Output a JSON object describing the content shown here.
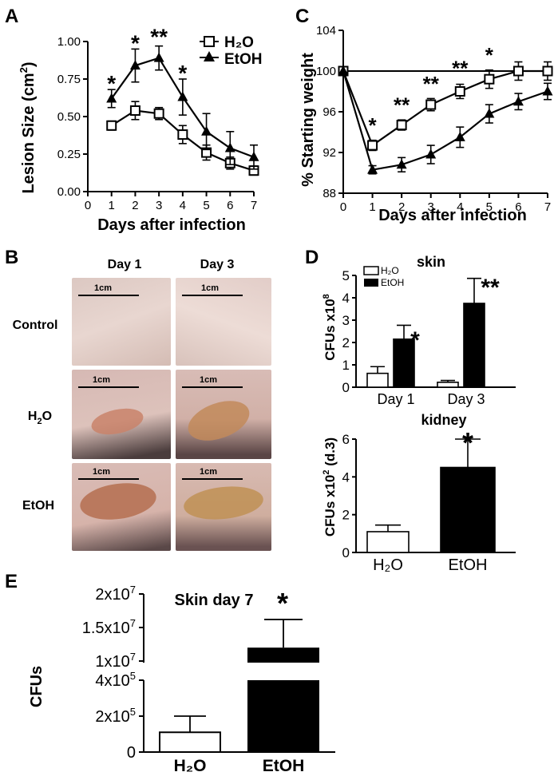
{
  "panels": {
    "A": {
      "letter": "A",
      "ylabel": "Lesion Size (cm",
      "ylabel_sup": "2",
      "ylabel_end": ")",
      "xlabel": "Days after infection",
      "yticks": [
        "0.00",
        "0.25",
        "0.50",
        "0.75",
        "1.00"
      ],
      "xticks": [
        "0",
        "1",
        "2",
        "3",
        "4",
        "5",
        "6",
        "7"
      ],
      "legend": [
        "H₂O",
        "EtOH"
      ],
      "stars": [
        "*",
        "*",
        "**",
        "*"
      ]
    },
    "B": {
      "letter": "B",
      "col_labels": [
        "Day 1",
        "Day 3"
      ],
      "row_labels": [
        "Control",
        "H",
        "2",
        "O",
        "EtOH"
      ],
      "scale_label": "1cm"
    },
    "C": {
      "letter": "C",
      "ylabel": "% Starting weight",
      "xlabel": "Days after infection",
      "yticks": [
        "88",
        "92",
        "96",
        "100",
        "104"
      ],
      "xticks": [
        "0",
        "1",
        "2",
        "3",
        "4",
        "5",
        "6",
        "7"
      ],
      "stars": [
        "*",
        "**",
        "**",
        "**",
        "*"
      ]
    },
    "D": {
      "letter": "D",
      "skin_title": "skin",
      "skin_ylabel": "CFUs x10",
      "skin_ylabel_sup": "8",
      "skin_yticks": [
        "0",
        "1",
        "2",
        "3",
        "4",
        "5"
      ],
      "skin_xticks": [
        "Day 1",
        "Day 3"
      ],
      "legend": [
        "H₂O",
        "EtOH"
      ],
      "skin_stars": [
        "*",
        "**"
      ],
      "kidney_title": "kidney",
      "kidney_ylabel": "CFUs x10",
      "kidney_ylabel_sup": "2",
      "kidney_ylabel_end": " (d.3)",
      "kidney_yticks": [
        "0",
        "2",
        "4",
        "6"
      ],
      "kidney_xticks": [
        "H₂O",
        "EtOH"
      ],
      "kidney_star": "*"
    },
    "E": {
      "letter": "E",
      "title": "Skin day 7",
      "ylabel": "CFUs",
      "yticks_low": [
        "0",
        "2x10",
        "4x10"
      ],
      "yticks_low_sup": [
        "",
        "5",
        "5"
      ],
      "yticks_high": [
        "1x10",
        "1.5x10",
        "2x10"
      ],
      "yticks_high_sup": [
        "7",
        "7",
        "7"
      ],
      "xticks": [
        "H₂O",
        "EtOH"
      ],
      "star": "*"
    }
  },
  "chart_data": [
    {
      "type": "line",
      "panel": "A",
      "x": [
        1,
        2,
        3,
        4,
        5,
        6,
        7
      ],
      "xlim": [
        0,
        7
      ],
      "ylim": [
        0,
        1.0
      ],
      "series": [
        {
          "name": "H₂O",
          "values": [
            0.44,
            0.54,
            0.52,
            0.38,
            0.26,
            0.19,
            0.14
          ],
          "errors": [
            0.03,
            0.06,
            0.04,
            0.06,
            0.05,
            0.04,
            0.03
          ]
        },
        {
          "name": "EtOH",
          "values": [
            0.62,
            0.84,
            0.89,
            0.63,
            0.4,
            0.29,
            0.23
          ],
          "errors": [
            0.06,
            0.11,
            0.08,
            0.12,
            0.12,
            0.11,
            0.08
          ]
        }
      ]
    },
    {
      "type": "line",
      "panel": "C",
      "x": [
        0,
        1,
        2,
        3,
        4,
        5,
        6,
        7
      ],
      "xlim": [
        0,
        7
      ],
      "ylim": [
        88,
        104
      ],
      "series": [
        {
          "name": "H₂O",
          "values": [
            100,
            92.7,
            94.7,
            96.7,
            98.0,
            99.2,
            100.0,
            100.0
          ],
          "errors": [
            0,
            0.5,
            0.5,
            0.6,
            0.7,
            0.9,
            0.9,
            0.9
          ]
        },
        {
          "name": "EtOH",
          "values": [
            100,
            90.3,
            90.8,
            91.8,
            93.5,
            95.8,
            97.0,
            98.0
          ],
          "errors": [
            0,
            0.4,
            0.7,
            0.9,
            1.0,
            0.9,
            0.8,
            0.8
          ]
        }
      ]
    },
    {
      "type": "bar",
      "panel": "D-skin",
      "categories": [
        "Day 1",
        "Day 3"
      ],
      "ylim": [
        0,
        5
      ],
      "series": [
        {
          "name": "H₂O",
          "values": [
            0.62,
            0.22
          ],
          "errors": [
            0.3,
            0.08
          ]
        },
        {
          "name": "EtOH",
          "values": [
            2.15,
            3.75
          ],
          "errors": [
            0.62,
            1.12
          ]
        }
      ]
    },
    {
      "type": "bar",
      "panel": "D-kidney",
      "categories": [
        "H₂O",
        "EtOH"
      ],
      "ylim": [
        0,
        6
      ],
      "values": [
        1.1,
        4.5
      ],
      "errors": [
        0.35,
        1.5
      ]
    },
    {
      "type": "bar",
      "panel": "E",
      "categories": [
        "H₂O",
        "EtOH"
      ],
      "values": [
        110000,
        12000000
      ],
      "errors": [
        90000,
        4200000
      ],
      "ylim": [
        0,
        20000000
      ],
      "axis_break": [
        400000,
        10000000
      ]
    }
  ]
}
